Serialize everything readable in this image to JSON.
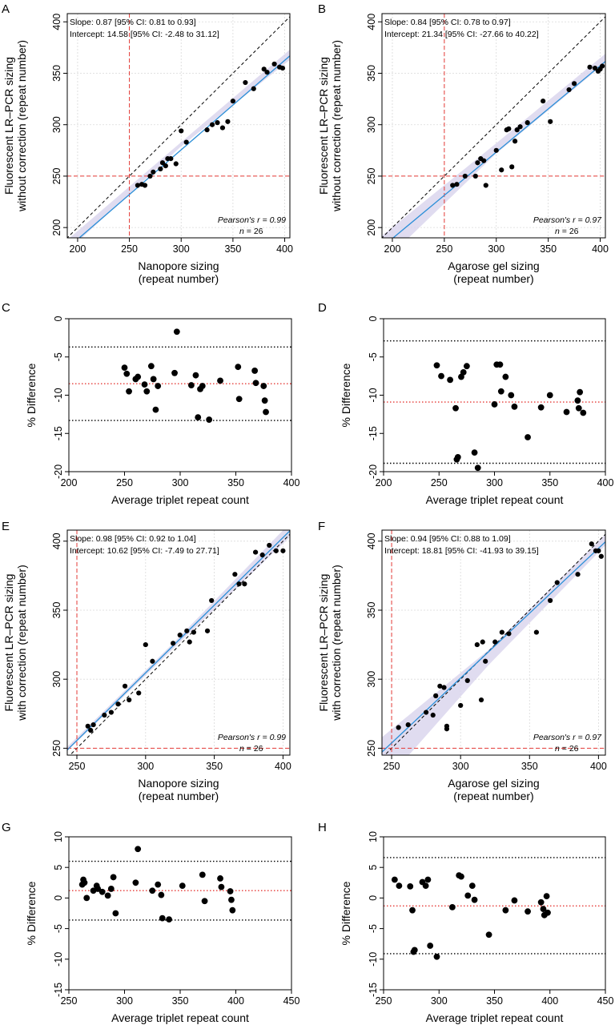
{
  "colors": {
    "regression_line": "#2b8fd8",
    "ci_band": "#d8d3ec",
    "threshold_line": "#e53935",
    "mean_line": "#e53935",
    "limit_line": "#000000",
    "identity_line": "#000000",
    "grid": "#d9d9d9",
    "point": "#000000"
  },
  "chart_data": [
    {
      "panel": "A",
      "type": "scatter",
      "xlabel": [
        "Nanopore sizing",
        "(repeat number)"
      ],
      "ylabel": [
        "Fluorescent LR–PCR sizing",
        "without correction (repeat number)"
      ],
      "xlim": [
        190,
        405
      ],
      "ylim": [
        190,
        408
      ],
      "xticks": [
        200,
        250,
        300,
        350,
        400
      ],
      "yticks": [
        200,
        250,
        300,
        350,
        400
      ],
      "grid": true,
      "annotations": [
        "Slope: 0.87 [95% CI: 0.81 to 0.93]",
        "Intercept: 14.58 [95% CI: -2.48 to 31.12]"
      ],
      "stats": {
        "r_label": "Pearson's r",
        "r_value": "0.99",
        "n_label": "n",
        "n_value": "26"
      },
      "regression": {
        "slope": 0.87,
        "intercept": 14.58
      },
      "ci_band": {
        "lower": [
          [
            190,
            177
          ],
          [
            300,
            279
          ],
          [
            405,
            363
          ]
        ],
        "upper": [
          [
            190,
            188
          ],
          [
            300,
            283
          ],
          [
            405,
            373
          ]
        ]
      },
      "identity_line": true,
      "threshold_x": 250,
      "threshold_y": 250,
      "points": {
        "x": [
          258,
          262,
          265,
          270,
          273,
          280,
          282,
          285,
          287,
          290,
          295,
          300,
          305,
          325,
          330,
          335,
          340,
          345,
          350,
          362,
          370,
          380,
          383,
          390,
          395,
          398
        ],
        "y": [
          241,
          242,
          241,
          250,
          254,
          257,
          263,
          260,
          267,
          267,
          262,
          294,
          283,
          295,
          300,
          302,
          297,
          303,
          323,
          341,
          335,
          354,
          351,
          359,
          356,
          355
        ]
      }
    },
    {
      "panel": "B",
      "type": "scatter",
      "xlabel": [
        "Agarose gel sizing",
        "(repeat number)"
      ],
      "ylabel": [
        "Fluorescent LR–PCR sizing",
        "without correction (repeat number)"
      ],
      "xlim": [
        190,
        405
      ],
      "ylim": [
        190,
        408
      ],
      "xticks": [
        200,
        250,
        300,
        350,
        400
      ],
      "yticks": [
        200,
        250,
        300,
        350,
        400
      ],
      "grid": true,
      "annotations": [
        "Slope: 0.84 [95% CI: 0.78 to 0.97]",
        "Intercept: 21.34 [95% CI: -27.66 to 40.22]"
      ],
      "stats": {
        "r_label": "Pearson's r",
        "r_value": "0.97",
        "n_label": "n",
        "n_value": "26"
      },
      "regression": {
        "slope": 0.84,
        "intercept": 21.34
      },
      "ci_band": {
        "lower": [
          [
            190,
            165
          ],
          [
            300,
            272
          ],
          [
            405,
            360
          ]
        ],
        "upper": [
          [
            190,
            192
          ],
          [
            300,
            282
          ],
          [
            405,
            369
          ]
        ]
      },
      "identity_line": true,
      "threshold_x": 250,
      "threshold_y": 250,
      "points": {
        "x": [
          258,
          262,
          270,
          280,
          282,
          285,
          288,
          290,
          300,
          305,
          310,
          312,
          315,
          318,
          320,
          323,
          330,
          345,
          352,
          370,
          375,
          390,
          395,
          398,
          400,
          402
        ],
        "y": [
          241,
          242,
          250,
          250,
          263,
          267,
          265,
          241,
          275,
          256,
          295,
          296,
          259,
          284,
          295,
          298,
          302,
          323,
          303,
          334,
          340,
          356,
          355,
          352,
          354,
          357
        ]
      }
    },
    {
      "panel": "C",
      "type": "scatter",
      "xlabel": "Average triplet repeat count",
      "ylabel": "% Difference",
      "xlim": [
        200,
        400
      ],
      "ylim": [
        -20,
        0
      ],
      "xticks": [
        200,
        250,
        300,
        350,
        400
      ],
      "yticks": [
        -20,
        -15,
        -10,
        -5,
        0
      ],
      "grid": false,
      "mean": -8.5,
      "upper_limit": -3.7,
      "lower_limit": -13.3,
      "points": {
        "x": [
          250,
          252,
          254,
          260,
          262,
          268,
          270,
          274,
          276,
          278,
          280,
          295,
          297,
          310,
          314,
          316,
          318,
          320,
          326,
          336,
          352,
          353,
          367,
          368,
          375,
          376,
          377
        ],
        "y": [
          -6.4,
          -7.2,
          -9.5,
          -7.9,
          -7.6,
          -8.6,
          -9.5,
          -6.2,
          -7.9,
          -11.9,
          -8.8,
          -7.1,
          -1.7,
          -8.7,
          -7.4,
          -12.9,
          -9.2,
          -8.8,
          -13.2,
          -8.1,
          -6.3,
          -10.5,
          -6.8,
          -8.4,
          -8.8,
          -10.7,
          -12.2
        ]
      }
    },
    {
      "panel": "D",
      "type": "scatter",
      "xlabel": "Average triplet repeat count",
      "ylabel": "% Difference",
      "xlim": [
        200,
        400
      ],
      "ylim": [
        -20,
        0
      ],
      "xticks": [
        200,
        250,
        300,
        350,
        400
      ],
      "yticks": [
        -20,
        -15,
        -10,
        -5,
        0
      ],
      "grid": false,
      "mean": -10.9,
      "upper_limit": -2.9,
      "lower_limit": -18.9,
      "points": {
        "x": [
          248,
          252,
          260,
          265,
          266,
          267,
          270,
          272,
          275,
          282,
          285,
          300,
          302,
          305,
          306,
          310,
          315,
          318,
          330,
          342,
          350,
          365,
          375,
          376,
          377,
          380
        ],
        "y": [
          -6.1,
          -7.5,
          -8.0,
          -11.7,
          -18.4,
          -18.1,
          -7.6,
          -7.0,
          -6.2,
          -17.5,
          -19.5,
          -11.2,
          -6.0,
          -6.0,
          -9.5,
          -7.6,
          -10.0,
          -11.5,
          -15.5,
          -11.6,
          -10.0,
          -12.2,
          -10.7,
          -11.7,
          -9.6,
          -12.3
        ]
      }
    },
    {
      "panel": "E",
      "type": "scatter",
      "xlabel": [
        "Nanopore sizing",
        "(repeat number)"
      ],
      "ylabel": [
        "Fluorescent LR–PCR sizing",
        "with correction (repeat number)"
      ],
      "xlim": [
        243,
        405
      ],
      "ylim": [
        245,
        408
      ],
      "xticks": [
        250,
        300,
        350,
        400
      ],
      "yticks": [
        250,
        300,
        350,
        400
      ],
      "grid": true,
      "annotations": [
        "Slope: 0.98 [95% CI: 0.92 to 1.04]",
        "Intercept: 10.62 [95% CI: -7.49 to 27.71]"
      ],
      "stats": {
        "r_label": "Pearson's r",
        "r_value": "0.99",
        "n_label": "n",
        "n_value": "26"
      },
      "regression": {
        "slope": 0.98,
        "intercept": 10.62
      },
      "ci_band": {
        "lower": [
          [
            243,
            248
          ],
          [
            320,
            322
          ],
          [
            405,
            403
          ]
        ],
        "upper": [
          [
            243,
            251
          ],
          [
            320,
            326
          ],
          [
            405,
            413
          ]
        ]
      },
      "identity_line": true,
      "threshold_x": 250,
      "threshold_y": 250,
      "points": {
        "x": [
          258,
          260,
          262,
          270,
          275,
          280,
          285,
          288,
          295,
          300,
          305,
          320,
          325,
          330,
          332,
          335,
          345,
          348,
          365,
          368,
          372,
          380,
          385,
          390,
          395,
          400
        ],
        "y": [
          266,
          263,
          267,
          274,
          276,
          282,
          295,
          285,
          290,
          325,
          313,
          326,
          332,
          335,
          327,
          334,
          335,
          357,
          376,
          369,
          369,
          392,
          390,
          397,
          393,
          393
        ]
      }
    },
    {
      "panel": "F",
      "type": "scatter",
      "xlabel": [
        "Agarose gel sizing",
        "(repeat number)"
      ],
      "ylabel": [
        "Fluorescent LR–PCR sizing",
        "with correction (repeat number)"
      ],
      "xlim": [
        243,
        405
      ],
      "ylim": [
        245,
        408
      ],
      "xticks": [
        250,
        300,
        350,
        400
      ],
      "yticks": [
        250,
        300,
        350,
        400
      ],
      "grid": true,
      "annotations": [
        "Slope: 0.94 [95% CI: 0.88 to 1.09]",
        "Intercept: 18.81 [95% CI: -41.93 to 39.15]"
      ],
      "stats": {
        "r_label": "Pearson's r",
        "r_value": "0.97",
        "n_label": "n",
        "n_value": "26"
      },
      "regression": {
        "slope": 0.94,
        "intercept": 18.81
      },
      "ci_band": {
        "lower": [
          [
            243,
            223
          ],
          [
            320,
            310
          ],
          [
            405,
            397
          ]
        ],
        "upper": [
          [
            243,
            258
          ],
          [
            320,
            321
          ],
          [
            405,
            405
          ]
        ]
      },
      "identity_line": true,
      "threshold_x": 250,
      "threshold_y": 250,
      "points": {
        "x": [
          255,
          262,
          275,
          280,
          282,
          285,
          288,
          290,
          290,
          300,
          305,
          312,
          315,
          316,
          318,
          325,
          330,
          335,
          355,
          365,
          370,
          385,
          395,
          398,
          400,
          402
        ],
        "y": [
          265,
          267,
          276,
          274,
          288,
          295,
          294,
          266,
          264,
          281,
          299,
          325,
          285,
          327,
          313,
          327,
          334,
          333,
          334,
          357,
          370,
          376,
          398,
          393,
          393,
          389
        ]
      }
    },
    {
      "panel": "G",
      "type": "scatter",
      "xlabel": "Average triplet repeat count",
      "ylabel": "% Difference",
      "xlim": [
        250,
        450
      ],
      "ylim": [
        -15,
        10
      ],
      "xticks": [
        250,
        300,
        350,
        400,
        450
      ],
      "yticks": [
        -15,
        -10,
        -5,
        0,
        5,
        10
      ],
      "grid": false,
      "mean": 1.2,
      "upper_limit": 6.0,
      "lower_limit": -3.6,
      "points": {
        "x": [
          262,
          263,
          264,
          266,
          272,
          275,
          276,
          280,
          285,
          288,
          290,
          292,
          310,
          312,
          325,
          330,
          333,
          334,
          340,
          352,
          370,
          372,
          386,
          387,
          395,
          396,
          397
        ],
        "y": [
          2.2,
          3.0,
          2.5,
          0.0,
          1.2,
          2.0,
          1.5,
          1.0,
          0.4,
          1.5,
          3.4,
          -2.5,
          2.5,
          8.0,
          1.2,
          2.2,
          0.5,
          -3.3,
          -3.5,
          2.0,
          3.8,
          -0.5,
          3.2,
          1.8,
          1.1,
          -0.3,
          -2.0
        ]
      }
    },
    {
      "panel": "H",
      "type": "scatter",
      "xlabel": "Average triplet repeat count",
      "ylabel": "% Difference",
      "xlim": [
        250,
        450
      ],
      "ylim": [
        -15,
        10
      ],
      "xticks": [
        250,
        300,
        350,
        400,
        450
      ],
      "yticks": [
        -15,
        -10,
        -5,
        0,
        5,
        10
      ],
      "grid": false,
      "mean": -1.3,
      "upper_limit": 6.6,
      "lower_limit": -9.1,
      "points": {
        "x": [
          260,
          264,
          274,
          276,
          277,
          278,
          285,
          288,
          290,
          292,
          298,
          312,
          318,
          320,
          326,
          330,
          332,
          345,
          360,
          368,
          380,
          392,
          394,
          395,
          397,
          398
        ],
        "y": [
          3.0,
          2.0,
          1.9,
          -2.0,
          -8.8,
          -8.5,
          2.6,
          2.0,
          3.0,
          -7.8,
          -9.6,
          -1.5,
          3.7,
          3.5,
          0.4,
          2.0,
          -0.3,
          -6.0,
          -2.0,
          -0.4,
          -2.2,
          -0.7,
          -1.8,
          -2.8,
          0.3,
          -2.4
        ]
      }
    }
  ]
}
